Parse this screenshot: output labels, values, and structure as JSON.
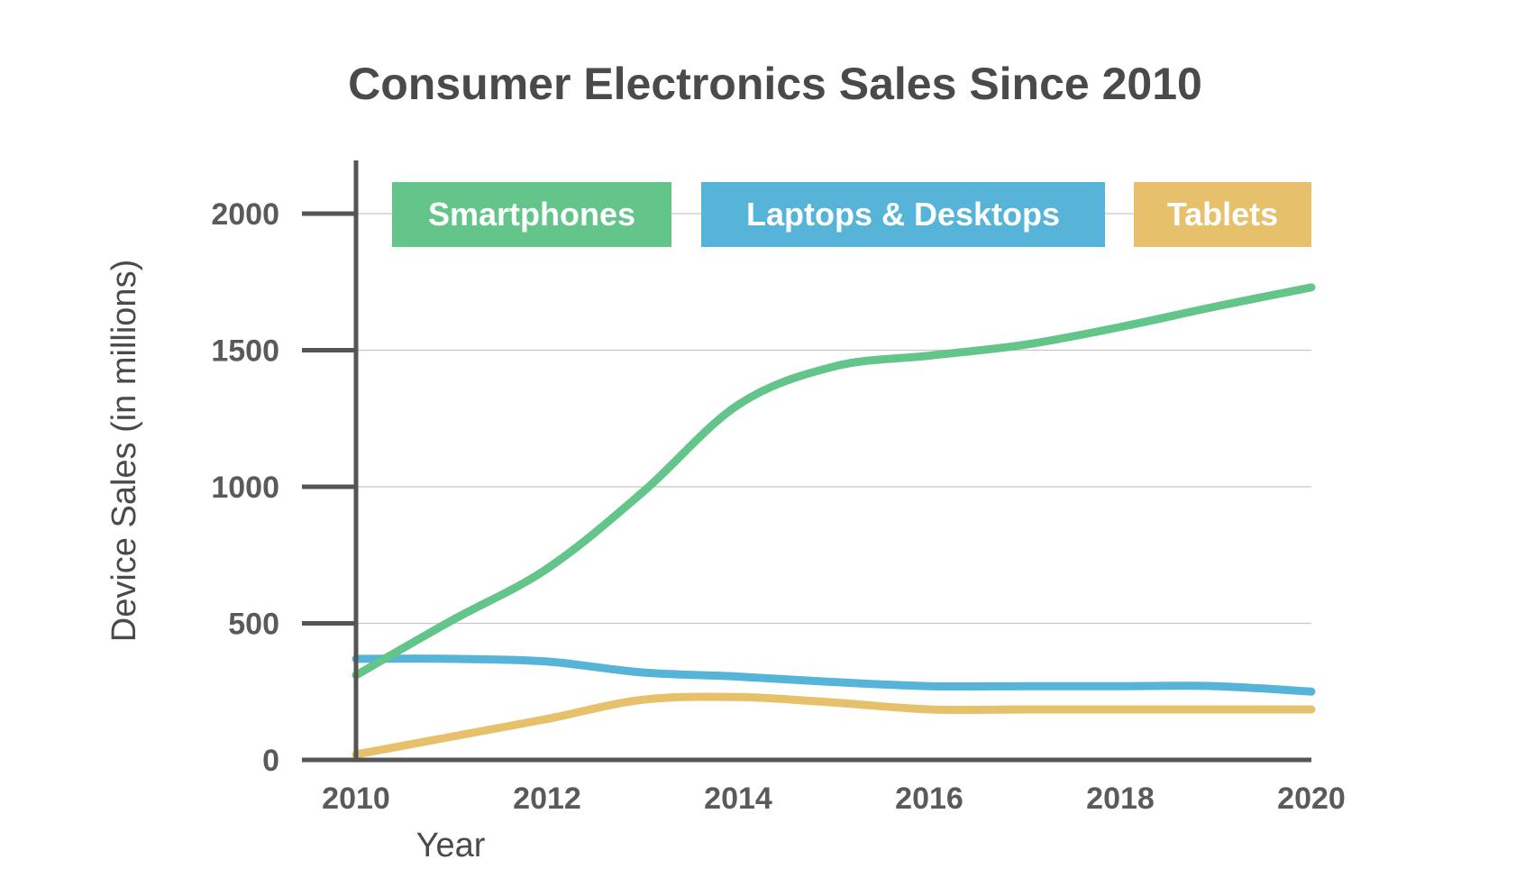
{
  "chart_data": {
    "type": "line",
    "title": "Consumer Electronics Sales Since 2010",
    "xlabel": "Year",
    "ylabel": "Device Sales (in millions)",
    "x": [
      2010,
      2011,
      2012,
      2013,
      2014,
      2015,
      2016,
      2017,
      2018,
      2019,
      2020
    ],
    "x_ticks": [
      2010,
      2012,
      2014,
      2016,
      2018,
      2020
    ],
    "y_ticks": [
      0,
      500,
      1000,
      1500,
      2000
    ],
    "ylim": [
      0,
      2200
    ],
    "xlim": [
      2010,
      2020
    ],
    "grid": true,
    "legend_position": "top",
    "series": [
      {
        "name": "Smartphones",
        "color": "#63c58a",
        "values": [
          310,
          510,
          700,
          980,
          1300,
          1440,
          1480,
          1520,
          1585,
          1660,
          1730
        ]
      },
      {
        "name": "Laptops & Desktops",
        "color": "#55b4d8",
        "values": [
          370,
          370,
          360,
          320,
          305,
          285,
          270,
          270,
          270,
          270,
          250
        ]
      },
      {
        "name": "Tablets",
        "color": "#e6c06b",
        "values": [
          20,
          85,
          150,
          220,
          230,
          210,
          185,
          185,
          185,
          185,
          185
        ]
      }
    ]
  }
}
